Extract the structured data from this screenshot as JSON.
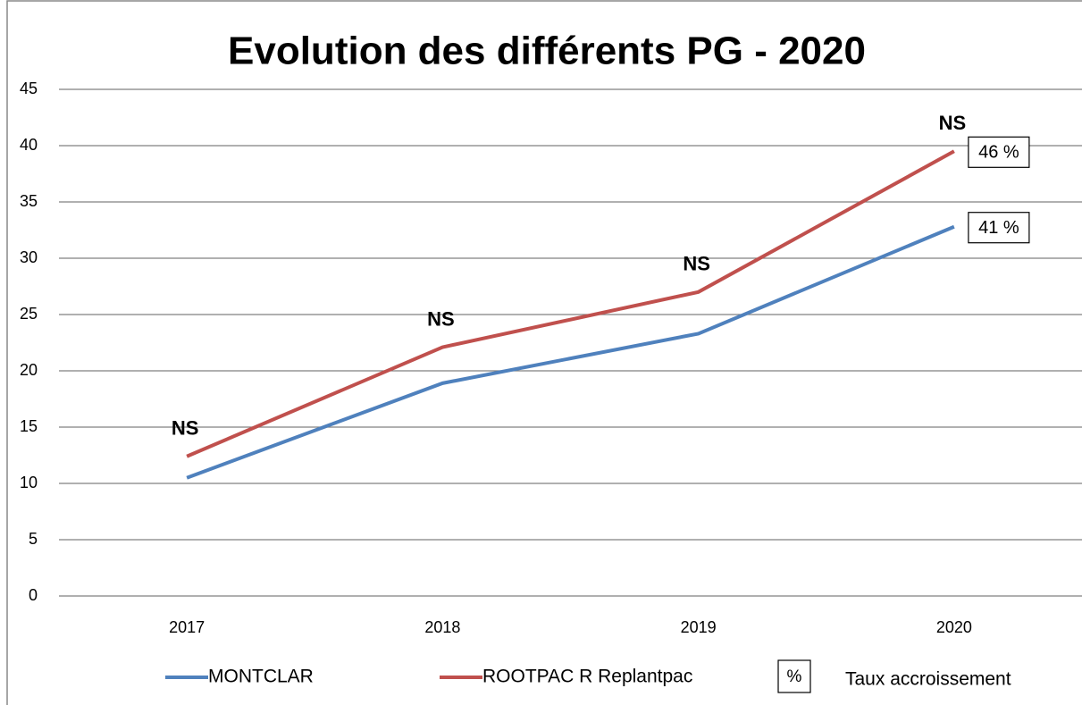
{
  "chart_data": {
    "type": "line",
    "title": "Evolution des différents PG - 2020",
    "categories": [
      "2017",
      "2018",
      "2019",
      "2020"
    ],
    "series": [
      {
        "name": "MONTCLAR",
        "color": "#4f81bd",
        "values": [
          10.5,
          18.9,
          23.3,
          32.8
        ],
        "growth_label": "41 %"
      },
      {
        "name": "ROOTPAC R Replantpac",
        "color": "#c0504d",
        "values": [
          12.4,
          22.1,
          27.0,
          39.5
        ],
        "growth_label": "46 %"
      }
    ],
    "annotations": [
      "NS",
      "NS",
      "NS",
      "NS"
    ],
    "legend_extra": {
      "symbol": "%",
      "text": "Taux accroissement"
    },
    "ylim": [
      0,
      45
    ],
    "yticks": [
      0,
      5,
      10,
      15,
      20,
      25,
      30,
      35,
      40,
      45
    ],
    "grid": true
  }
}
